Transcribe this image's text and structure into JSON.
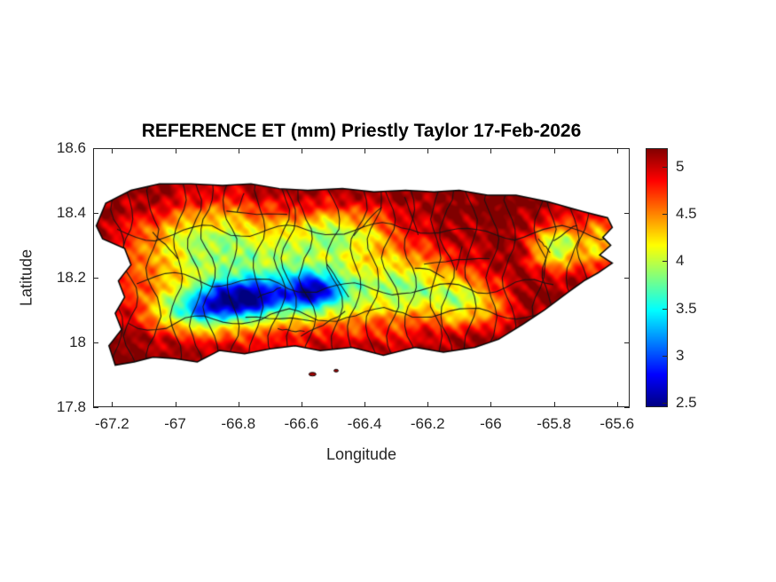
{
  "figure": {
    "background": "#ffffff"
  },
  "chart_data": {
    "type": "heatmap",
    "title": "REFERENCE ET (mm) Priestly Taylor 17-Feb-2026",
    "xlabel": "Longitude",
    "ylabel": "Latitude",
    "region": "Puerto Rico",
    "variable": "Reference ET (mm)",
    "method": "Priestly Taylor",
    "date": "17-Feb-2026",
    "xlim": [
      -67.26,
      -65.56
    ],
    "ylim": [
      17.8,
      18.6
    ],
    "xticks": [
      -67.2,
      -67,
      -66.8,
      -66.6,
      -66.4,
      -66.2,
      -66,
      -65.8,
      -65.6
    ],
    "yticks": [
      17.8,
      18,
      18.2,
      18.4,
      18.6
    ],
    "colormap": "jet",
    "clim": [
      2.45,
      5.2
    ],
    "colorbar_ticks": [
      2.5,
      3,
      3.5,
      4,
      4.5,
      5
    ],
    "legend_position": "right-colorbar",
    "grid": false,
    "colors": {
      "axes": "#262626",
      "title": "#000000",
      "coastline": "#050505",
      "boundaries": "#141414",
      "background": "#ffffff"
    },
    "coastline": [
      [
        -67.25,
        18.36
      ],
      [
        -67.22,
        18.43
      ],
      [
        -67.14,
        18.47
      ],
      [
        -67.05,
        18.49
      ],
      [
        -66.95,
        18.49
      ],
      [
        -66.85,
        18.485
      ],
      [
        -66.76,
        18.49
      ],
      [
        -66.67,
        18.475
      ],
      [
        -66.58,
        18.47
      ],
      [
        -66.47,
        18.475
      ],
      [
        -66.37,
        18.465
      ],
      [
        -66.27,
        18.47
      ],
      [
        -66.18,
        18.465
      ],
      [
        -66.1,
        18.47
      ],
      [
        -66.01,
        18.455
      ],
      [
        -65.92,
        18.455
      ],
      [
        -65.82,
        18.435
      ],
      [
        -65.71,
        18.405
      ],
      [
        -65.63,
        18.385
      ],
      [
        -65.615,
        18.355
      ],
      [
        -65.645,
        18.325
      ],
      [
        -65.62,
        18.3
      ],
      [
        -65.655,
        18.27
      ],
      [
        -65.615,
        18.245
      ],
      [
        -65.66,
        18.215
      ],
      [
        -65.705,
        18.19
      ],
      [
        -65.755,
        18.155
      ],
      [
        -65.83,
        18.1
      ],
      [
        -65.9,
        18.055
      ],
      [
        -65.975,
        18.01
      ],
      [
        -66.05,
        17.985
      ],
      [
        -66.15,
        17.97
      ],
      [
        -66.24,
        17.985
      ],
      [
        -66.34,
        17.96
      ],
      [
        -66.44,
        17.985
      ],
      [
        -66.54,
        17.975
      ],
      [
        -66.62,
        17.99
      ],
      [
        -66.7,
        17.98
      ],
      [
        -66.78,
        17.965
      ],
      [
        -66.86,
        17.975
      ],
      [
        -66.93,
        17.94
      ],
      [
        -67.0,
        17.95
      ],
      [
        -67.07,
        17.955
      ],
      [
        -67.13,
        17.94
      ],
      [
        -67.19,
        17.93
      ],
      [
        -67.21,
        17.99
      ],
      [
        -67.17,
        18.04
      ],
      [
        -67.19,
        18.09
      ],
      [
        -67.16,
        18.14
      ],
      [
        -67.18,
        18.19
      ],
      [
        -67.14,
        18.24
      ],
      [
        -67.16,
        18.29
      ],
      [
        -67.23,
        18.32
      ]
    ],
    "islets": [
      {
        "lon": -66.565,
        "lat": 17.902,
        "rx": 4,
        "ry": 2
      },
      {
        "lon": -66.49,
        "lat": 17.913,
        "rx": 2.5,
        "ry": 1.5
      }
    ],
    "field_model": {
      "base": 4.95,
      "coastal_boost": 0.25,
      "depressions": [
        {
          "lon": -66.78,
          "lat": 18.135,
          "amp": 1.6,
          "slon": 0.09,
          "slat": 0.042
        },
        {
          "lon": -66.56,
          "lat": 18.16,
          "amp": 1.5,
          "slon": 0.07,
          "slat": 0.04
        },
        {
          "lon": -66.92,
          "lat": 18.1,
          "amp": 1.1,
          "slon": 0.09,
          "slat": 0.045
        },
        {
          "lon": -66.62,
          "lat": 18.16,
          "amp": 0.85,
          "slon": 0.32,
          "slat": 0.095
        },
        {
          "lon": -66.88,
          "lat": 18.31,
          "amp": 0.9,
          "slon": 0.16,
          "slat": 0.08
        },
        {
          "lon": -66.48,
          "lat": 18.33,
          "amp": 0.8,
          "slon": 0.13,
          "slat": 0.06
        },
        {
          "lon": -65.79,
          "lat": 18.295,
          "amp": 1.05,
          "slon": 0.055,
          "slat": 0.05
        },
        {
          "lon": -65.655,
          "lat": 18.31,
          "amp": 0.7,
          "slon": 0.04,
          "slat": 0.06
        },
        {
          "lon": -66.08,
          "lat": 18.12,
          "amp": 0.65,
          "slon": 0.08,
          "slat": 0.05
        },
        {
          "lon": -66.27,
          "lat": 18.17,
          "amp": 0.6,
          "slon": 0.1,
          "slat": 0.06
        }
      ]
    },
    "boundaries": {
      "description": "municipality boundary lines",
      "seed": 42,
      "vertical_count": 25,
      "horizontal_lats": [
        18.06,
        18.195,
        18.33
      ],
      "extra_segments": 16
    }
  }
}
